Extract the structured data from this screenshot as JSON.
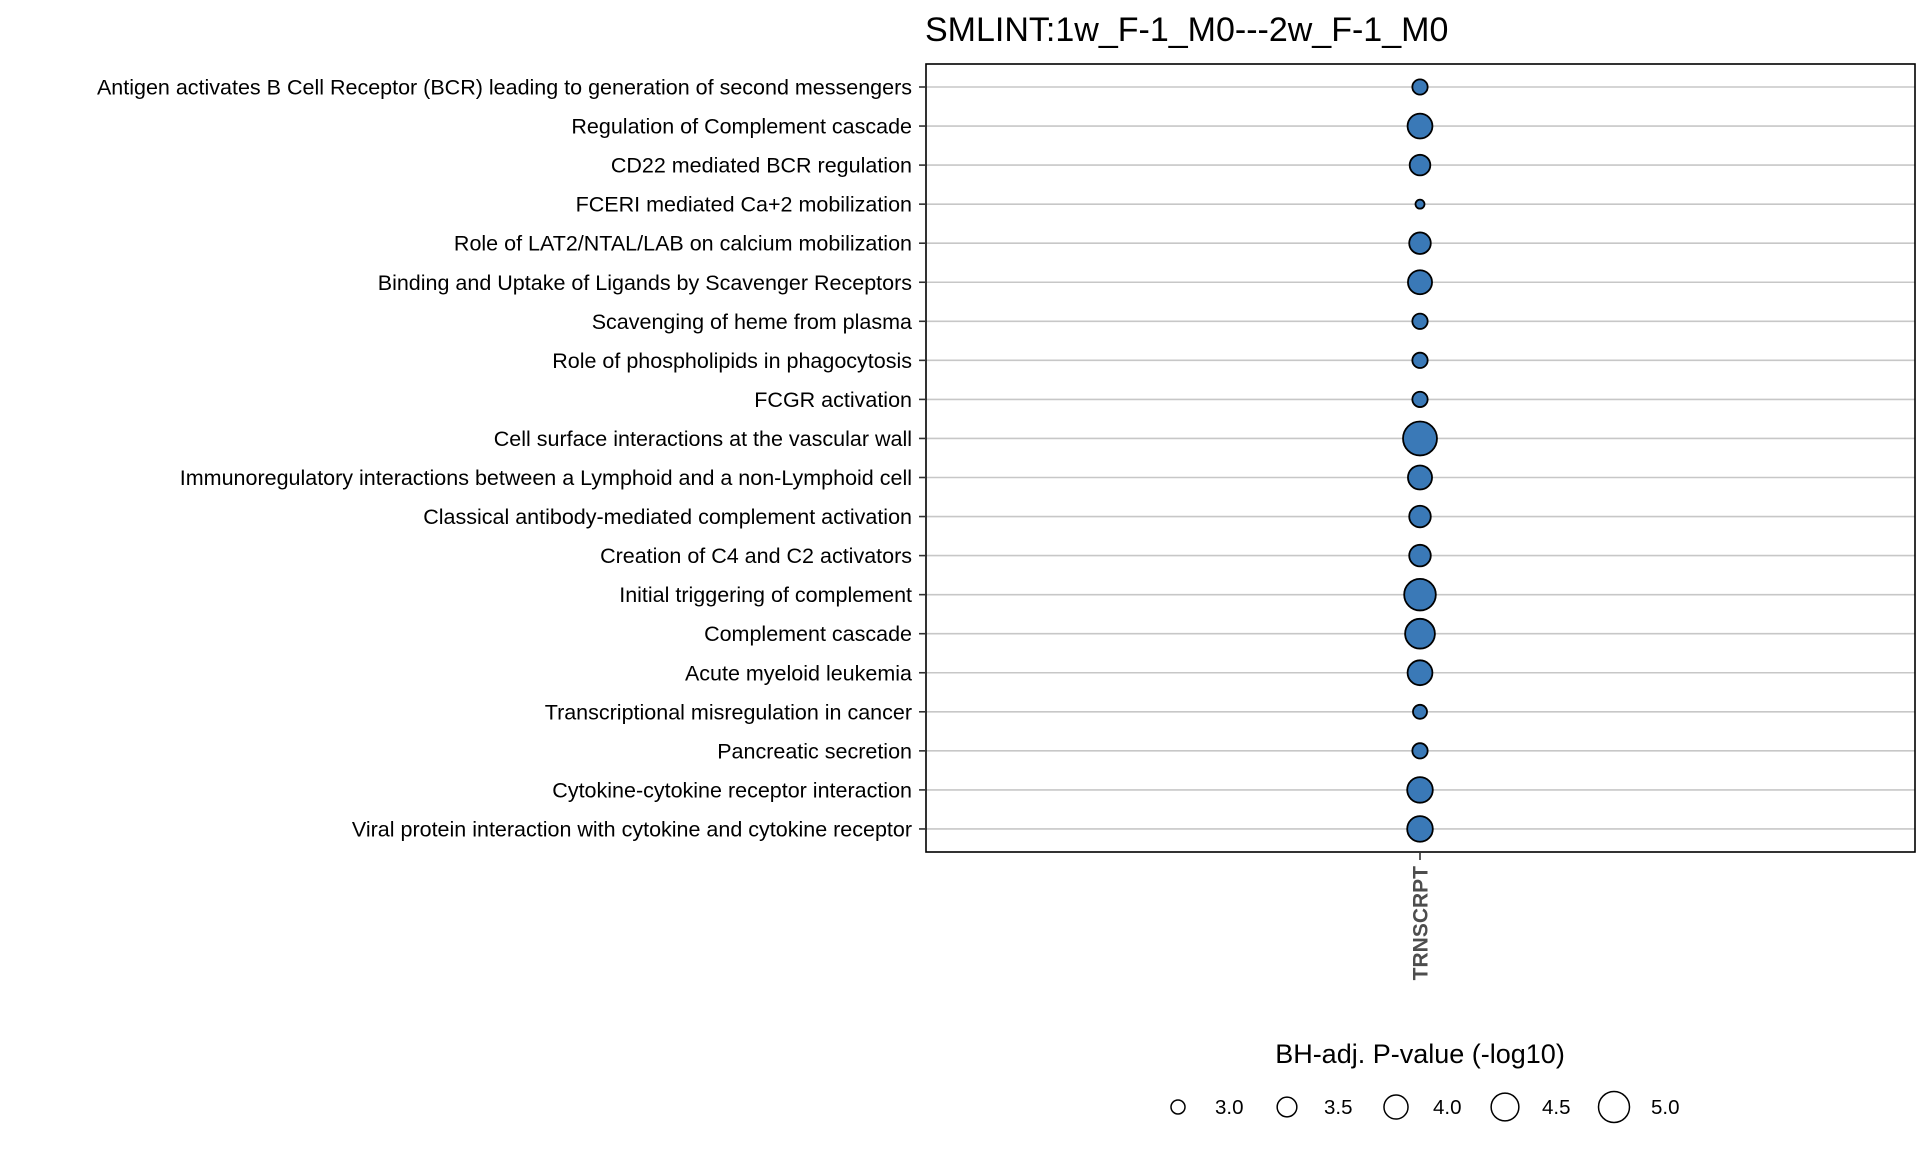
{
  "chart_data": {
    "type": "scatter",
    "title": "SMLINT:1w_F-1_M0---2w_F-1_M0",
    "x_categories": [
      "TRNSCRPT"
    ],
    "y_categories": [
      "Antigen activates B Cell Receptor (BCR) leading to generation of second messengers",
      "Regulation of Complement cascade",
      "CD22 mediated BCR regulation",
      "FCERI mediated Ca+2 mobilization",
      "Role of LAT2/NTAL/LAB on calcium mobilization",
      "Binding and Uptake of Ligands by Scavenger Receptors",
      "Scavenging of heme from plasma",
      "Role of phospholipids in phagocytosis",
      "FCGR activation",
      "Cell surface interactions at the vascular wall",
      "Immunoregulatory interactions between a Lymphoid and a non-Lymphoid cell",
      "Classical antibody-mediated complement activation",
      "Creation of C4 and C2 activators",
      "Initial triggering of complement",
      "Complement cascade",
      "Acute myeloid leukemia",
      "Transcriptional misregulation in cancer",
      "Pancreatic secretion",
      "Cytokine-cytokine receptor interaction",
      "Viral protein interaction with cytokine and cytokine receptor"
    ],
    "points": [
      {
        "x": "TRNSCRPT",
        "y": "Antigen activates B Cell Receptor (BCR) leading to generation of second messengers",
        "size": 3.1
      },
      {
        "x": "TRNSCRPT",
        "y": "Regulation of Complement cascade",
        "size": 4.1
      },
      {
        "x": "TRNSCRPT",
        "y": "CD22 mediated BCR regulation",
        "size": 3.6
      },
      {
        "x": "TRNSCRPT",
        "y": "FCERI mediated Ca+2 mobilization",
        "size": 2.7
      },
      {
        "x": "TRNSCRPT",
        "y": "Role of LAT2/NTAL/LAB on calcium mobilization",
        "size": 3.7
      },
      {
        "x": "TRNSCRPT",
        "y": "Binding and Uptake of Ligands by Scavenger Receptors",
        "size": 4.0
      },
      {
        "x": "TRNSCRPT",
        "y": "Scavenging of heme from plasma",
        "size": 3.1
      },
      {
        "x": "TRNSCRPT",
        "y": "Role of phospholipids in phagocytosis",
        "size": 3.1
      },
      {
        "x": "TRNSCRPT",
        "y": "FCGR activation",
        "size": 3.1
      },
      {
        "x": "TRNSCRPT",
        "y": "Cell surface interactions at the vascular wall",
        "size": 5.5
      },
      {
        "x": "TRNSCRPT",
        "y": "Immunoregulatory interactions between a Lymphoid and a non-Lymphoid cell",
        "size": 4.0
      },
      {
        "x": "TRNSCRPT",
        "y": "Classical antibody-mediated complement activation",
        "size": 3.7
      },
      {
        "x": "TRNSCRPT",
        "y": "Creation of C4 and C2 activators",
        "size": 3.7
      },
      {
        "x": "TRNSCRPT",
        "y": "Initial triggering of complement",
        "size": 5.1
      },
      {
        "x": "TRNSCRPT",
        "y": "Complement cascade",
        "size": 4.8
      },
      {
        "x": "TRNSCRPT",
        "y": "Acute myeloid leukemia",
        "size": 4.1
      },
      {
        "x": "TRNSCRPT",
        "y": "Transcriptional misregulation in cancer",
        "size": 3.0
      },
      {
        "x": "TRNSCRPT",
        "y": "Pancreatic secretion",
        "size": 3.1
      },
      {
        "x": "TRNSCRPT",
        "y": "Cytokine-cytokine receptor interaction",
        "size": 4.2
      },
      {
        "x": "TRNSCRPT",
        "y": "Viral protein interaction with cytokine and cytokine receptor",
        "size": 4.2
      }
    ],
    "size_legend": {
      "title": "BH-adj. P-value (-log10)",
      "breaks": [
        3.0,
        3.5,
        4.0,
        4.5,
        5.0
      ],
      "labels": [
        "3.0",
        "3.5",
        "4.0",
        "4.5",
        "5.0"
      ],
      "placement": "bottom"
    },
    "point_fill": "#3a79b7",
    "point_stroke": "#000000",
    "grid_color": "#c7c7c7",
    "grid": "horizontal"
  }
}
